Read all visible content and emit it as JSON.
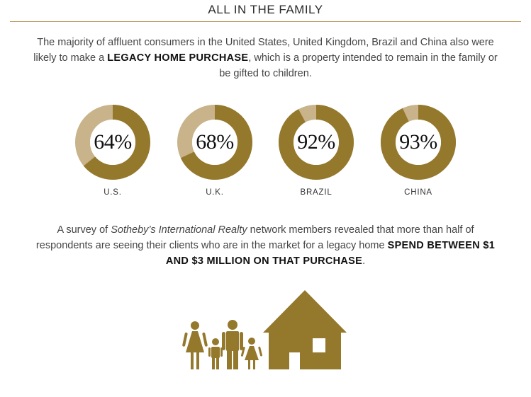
{
  "header": {
    "title": "ALL IN THE FAMILY"
  },
  "intro": {
    "text_before": "The majority of affluent consumers in the United States, United Kingdom, Brazil and China also were likely to make a ",
    "highlight": "LEGACY HOME PURCHASE",
    "text_after": ", which is a property intended to remain in the family or be gifted to children."
  },
  "chart_data": {
    "type": "pie",
    "subtype": "donut",
    "categories": [
      "U.S.",
      "U.K.",
      "BRAZIL",
      "CHINA"
    ],
    "values": [
      64,
      68,
      92,
      93
    ],
    "labels": [
      "64%",
      "68%",
      "92%",
      "93%"
    ],
    "unit": "%",
    "colors": {
      "filled": "#94782c",
      "remainder": "#c8b38a"
    }
  },
  "survey": {
    "text_before": "A survey of ",
    "italic": "Sotheby’s International Realty",
    "text_middle": " network members revealed that more than half of respondents are seeing their clients who are in the market for a legacy home ",
    "highlight": "SPEND BETWEEN $1 AND $3 MILLION ON THAT PURCHASE",
    "text_after": "."
  },
  "illustration": {
    "icon": "family-house-icon",
    "color": "#94782c"
  }
}
